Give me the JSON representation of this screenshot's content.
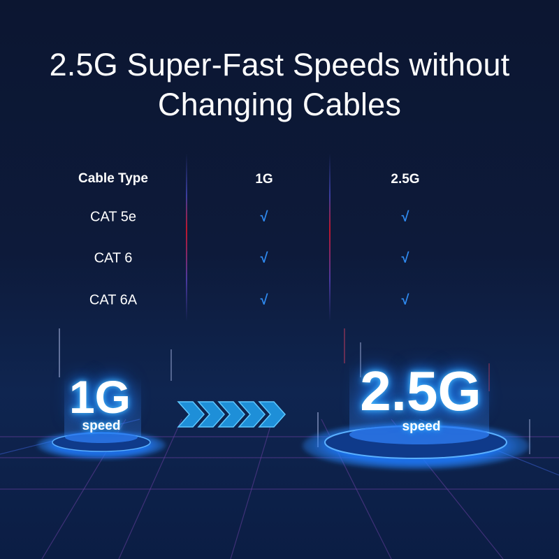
{
  "title": {
    "line1": "2.5G Super-Fast Speeds without",
    "line2": "Changing Cables"
  },
  "table": {
    "headers": [
      "Cable Type",
      "1G",
      "2.5G"
    ],
    "rows": [
      {
        "cable": "CAT 5e",
        "g1": "√",
        "g25": "√"
      },
      {
        "cable": "CAT 6",
        "g1": "√",
        "g25": "√"
      },
      {
        "cable": "CAT 6A",
        "g1": "√",
        "g25": "√"
      }
    ]
  },
  "speeds": {
    "left": {
      "value": "1G",
      "label": "speed"
    },
    "right": {
      "value": "2.5G",
      "label": "speed"
    }
  },
  "icons": {
    "arrow": "chevron-arrows-icon"
  },
  "colors": {
    "background": "#0c1631",
    "accent": "#2f8af0",
    "glow": "#1e90ff",
    "divider": "#c0162b"
  }
}
